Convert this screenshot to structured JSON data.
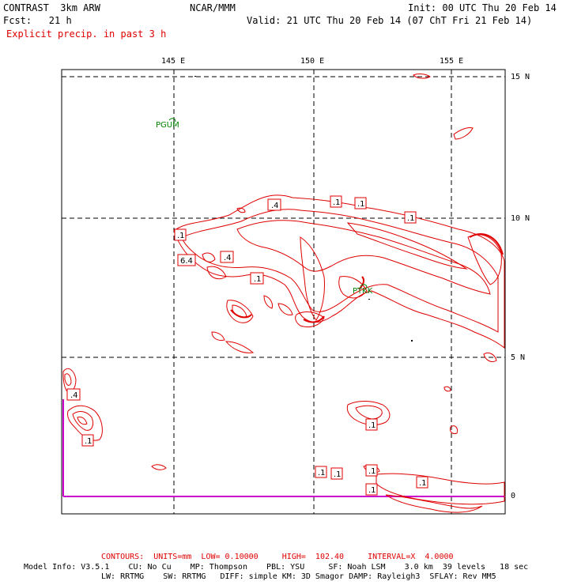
{
  "header": {
    "model": "CONTRAST  3km ARW",
    "center": "NCAR/MMM",
    "init": "Init: 00 UTC Thu 20 Feb 14",
    "fcst": "Fcst:   21 h",
    "valid": "Valid: 21 UTC Thu 20 Feb 14 (07 ChT Fri 21 Feb 14)",
    "field": "Explicit precip. in past 3 h"
  },
  "axes": {
    "lon_labels": [
      "145 E",
      "150 E",
      "155 E"
    ],
    "lat_labels": [
      "15 N",
      "10 N",
      "5 N",
      "0"
    ]
  },
  "stations": [
    "PGUM",
    "PTKK"
  ],
  "contour_labels": [
    ".4",
    ".1",
    ".1",
    ".1",
    ".1",
    "6.4",
    ".4",
    ".1",
    ".4",
    ".1",
    ".1",
    ".1",
    ".1",
    ".1",
    ".1",
    ".1"
  ],
  "footer": {
    "contours": "CONTOURS:  UNITS=mm  LOW= 0.10000     HIGH=  102.40     INTERVAL=X  4.0000",
    "info1": "Model Info: V3.5.1    CU: No Cu    MP: Thompson    PBL: YSU     SF: Noah LSM    3.0 km  39 levels   18 sec",
    "info2": "LW: RRTMG    SW: RRTMG   DIFF: simple KM: 3D Smagor DAMP: Rayleigh3  SFLAY: Rev MM5"
  },
  "colors": {
    "contour": "#e00000",
    "station": "#008000",
    "equator_line": "#cc00cc",
    "grid": "#000000"
  }
}
